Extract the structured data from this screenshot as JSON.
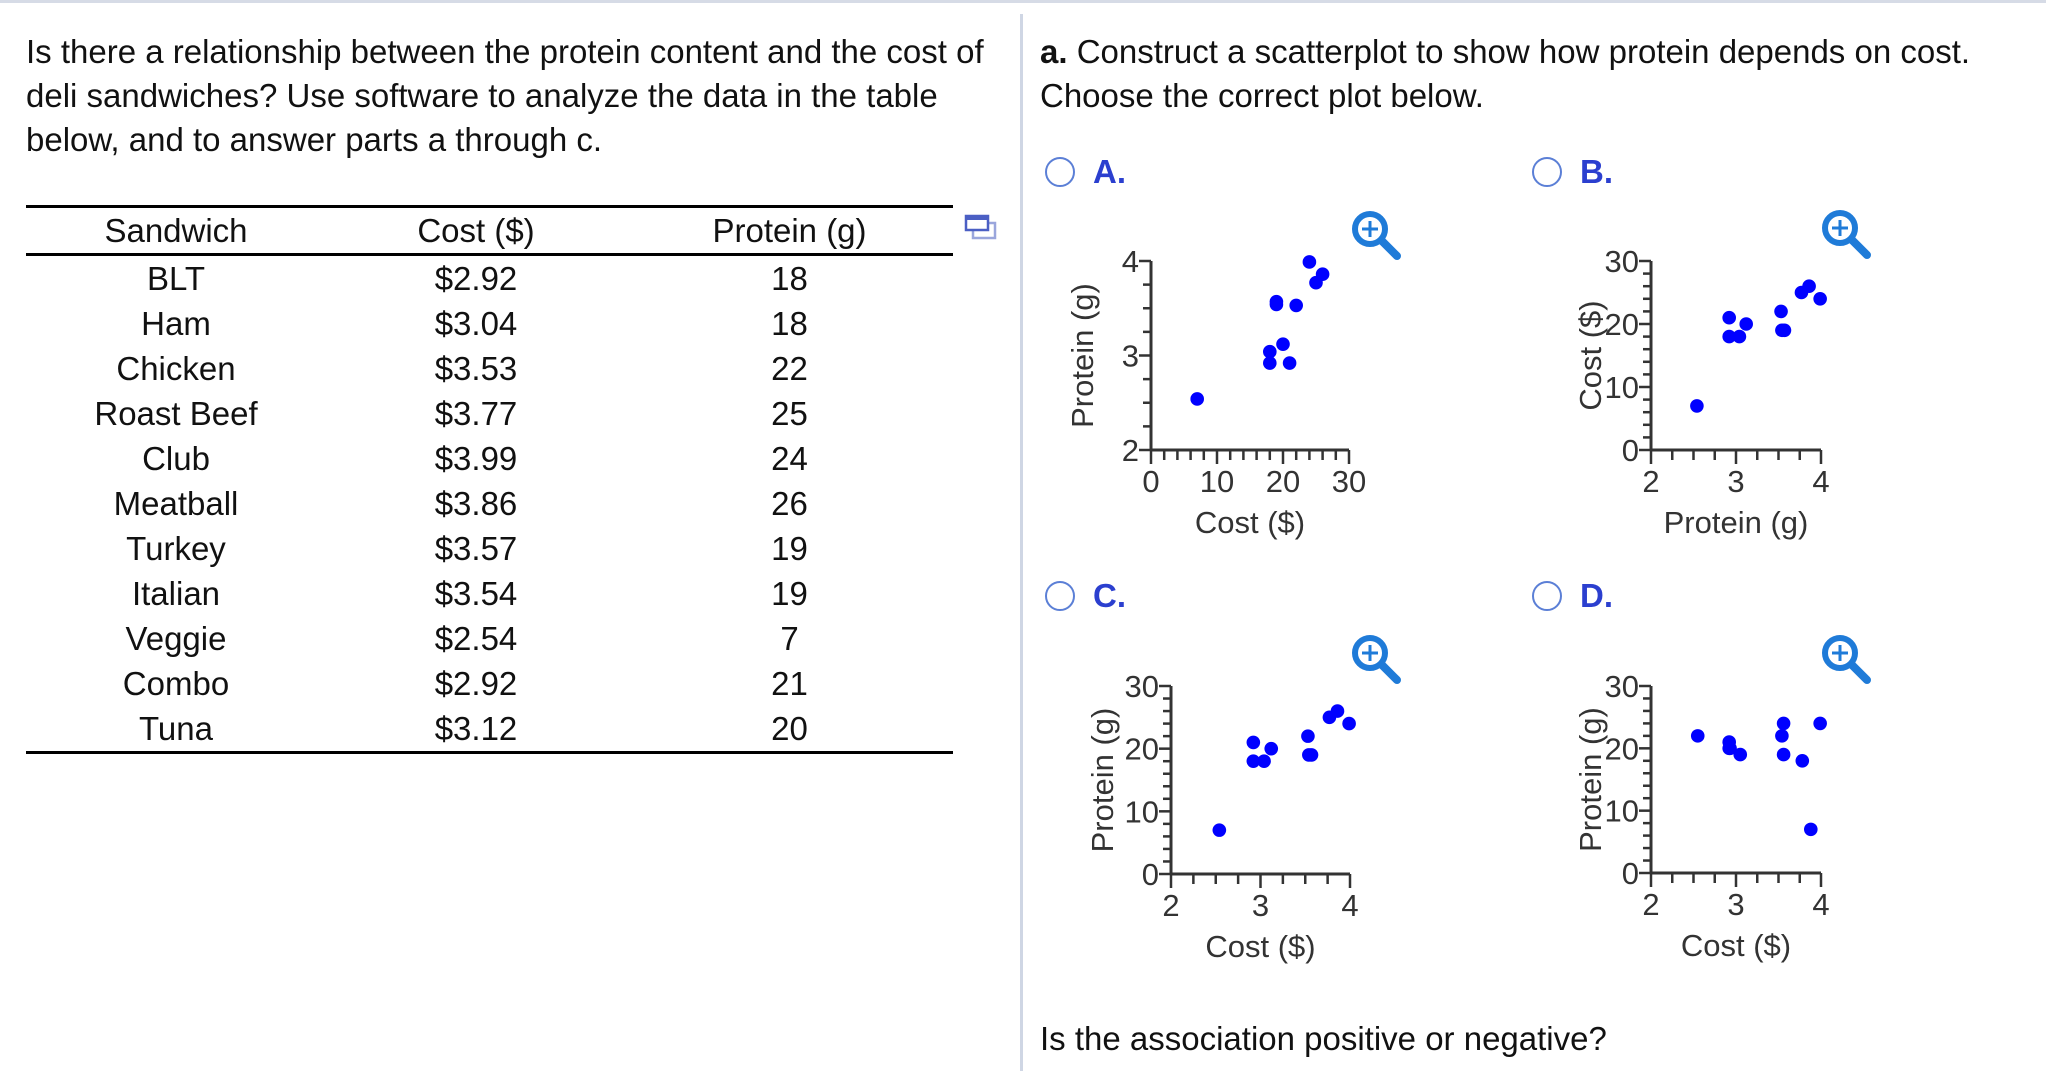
{
  "intro": "Is there a relationship between the protein content and the cost of deli sandwiches? Use software to analyze the data in the table below, and to answer parts a through c.",
  "table": {
    "headers": [
      "Sandwich",
      "Cost ($)",
      "Protein (g)"
    ],
    "rows": [
      [
        "BLT",
        "$2.92",
        "18"
      ],
      [
        "Ham",
        "$3.04",
        "18"
      ],
      [
        "Chicken",
        "$3.53",
        "22"
      ],
      [
        "Roast Beef",
        "$3.77",
        "25"
      ],
      [
        "Club",
        "$3.99",
        "24"
      ],
      [
        "Meatball",
        "$3.86",
        "26"
      ],
      [
        "Turkey",
        "$3.57",
        "19"
      ],
      [
        "Italian",
        "$3.54",
        "19"
      ],
      [
        "Veggie",
        "$2.54",
        "7"
      ],
      [
        "Combo",
        "$2.92",
        "21"
      ],
      [
        "Tuna",
        "$3.12",
        "20"
      ]
    ],
    "popout_icon": "popout-window-icon"
  },
  "question": {
    "part_label": "a.",
    "text": "Construct a scatterplot to show how protein depends on cost. Choose the correct plot below.",
    "options": [
      "A.",
      "B.",
      "C.",
      "D."
    ],
    "zoom_icon": "zoom-in-icon",
    "followup": "Is the association positive or negative?"
  },
  "colors": {
    "point": "#0000ff",
    "option_label": "#2b3fcf",
    "radio": "#5b7fd6",
    "zoom_icon": "#1f7bd8",
    "axis": "#333333"
  },
  "chart_data": [
    {
      "type": "scatter",
      "option": "A.",
      "xlabel": "Cost ($)",
      "ylabel": "Protein (g)",
      "xlim": [
        0,
        30
      ],
      "ylim": [
        2,
        4
      ],
      "xticks": [
        "0",
        "10",
        "20",
        "30"
      ],
      "yticks": [
        "2",
        "3",
        "4"
      ],
      "xminor": 2,
      "yminor": 0.25,
      "points": [
        [
          18,
          2.92
        ],
        [
          18,
          3.04
        ],
        [
          22,
          3.53
        ],
        [
          25,
          3.77
        ],
        [
          24,
          3.99
        ],
        [
          26,
          3.86
        ],
        [
          19,
          3.57
        ],
        [
          19,
          3.54
        ],
        [
          7,
          2.54
        ],
        [
          21,
          2.92
        ],
        [
          20,
          3.12
        ]
      ]
    },
    {
      "type": "scatter",
      "option": "B.",
      "xlabel": "Protein (g)",
      "ylabel": "Cost ($)",
      "xlim": [
        2,
        4
      ],
      "ylim": [
        0,
        30
      ],
      "xticks": [
        "2",
        "3",
        "4"
      ],
      "yticks": [
        "0",
        "10",
        "20",
        "30"
      ],
      "xminor": 0.25,
      "yminor": 2,
      "points": [
        [
          2.92,
          18
        ],
        [
          3.04,
          18
        ],
        [
          3.53,
          22
        ],
        [
          3.77,
          25
        ],
        [
          3.99,
          24
        ],
        [
          3.86,
          26
        ],
        [
          3.57,
          19
        ],
        [
          3.54,
          19
        ],
        [
          2.54,
          7
        ],
        [
          2.92,
          21
        ],
        [
          3.12,
          20
        ]
      ]
    },
    {
      "type": "scatter",
      "option": "C.",
      "xlabel": "Cost ($)",
      "ylabel": "Protein (g)",
      "xlim": [
        2,
        4
      ],
      "ylim": [
        0,
        30
      ],
      "xticks": [
        "2",
        "3",
        "4"
      ],
      "yticks": [
        "0",
        "10",
        "20",
        "30"
      ],
      "xminor": 0.25,
      "yminor": 2,
      "points": [
        [
          2.92,
          18
        ],
        [
          3.04,
          18
        ],
        [
          3.53,
          22
        ],
        [
          3.77,
          25
        ],
        [
          3.99,
          24
        ],
        [
          3.86,
          26
        ],
        [
          3.57,
          19
        ],
        [
          3.54,
          19
        ],
        [
          2.54,
          7
        ],
        [
          2.92,
          21
        ],
        [
          3.12,
          20
        ]
      ]
    },
    {
      "type": "scatter",
      "option": "D.",
      "xlabel": "Cost ($)",
      "ylabel": "Protein (g)",
      "xlim": [
        2,
        4
      ],
      "ylim": [
        0,
        30
      ],
      "xticks": [
        "2",
        "3",
        "4"
      ],
      "yticks": [
        "0",
        "10",
        "20",
        "30"
      ],
      "xminor": 0.25,
      "yminor": 2,
      "points": [
        [
          2.55,
          22
        ],
        [
          2.92,
          21
        ],
        [
          2.92,
          20
        ],
        [
          2.93,
          20
        ],
        [
          3.05,
          19
        ],
        [
          3.56,
          24
        ],
        [
          3.54,
          22
        ],
        [
          3.56,
          19
        ],
        [
          3.78,
          18
        ],
        [
          3.99,
          24
        ],
        [
          3.88,
          7
        ]
      ]
    }
  ]
}
